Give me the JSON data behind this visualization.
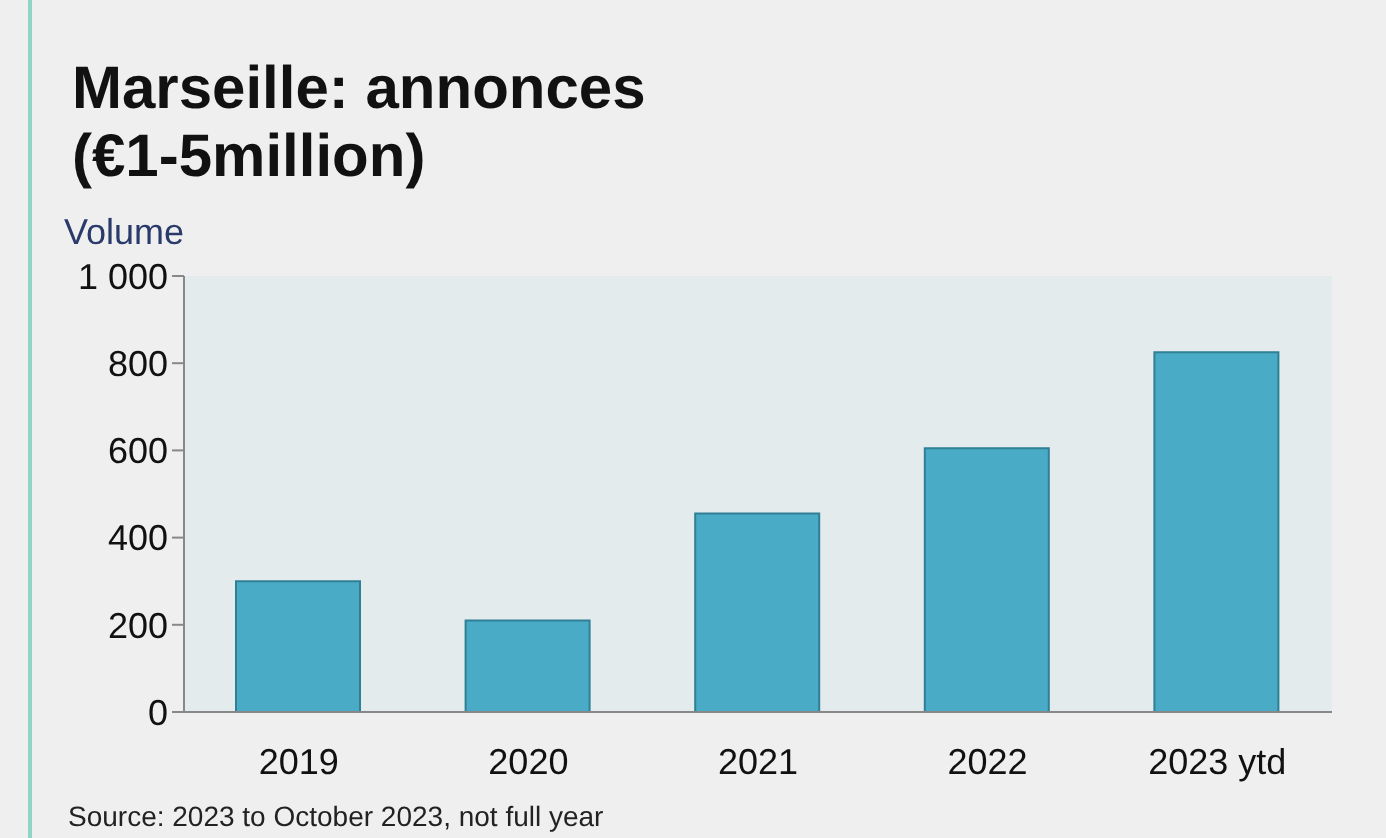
{
  "chart_data": {
    "type": "bar",
    "title": "Marseille: annonces\n(€1-5million)",
    "ylabel": "Volume",
    "categories": [
      "2019",
      "2020",
      "2021",
      "2022",
      "2023 ytd"
    ],
    "values": [
      300,
      210,
      455,
      605,
      825
    ],
    "color": "#4aabc6",
    "ylim": [
      0,
      1000
    ],
    "yticks": [
      0,
      200,
      400,
      600,
      800,
      {
        "value": 1000,
        "label": "1 000"
      }
    ],
    "grid": false,
    "annotations": [
      "Source: 2023 to October 2023, not full year"
    ]
  }
}
